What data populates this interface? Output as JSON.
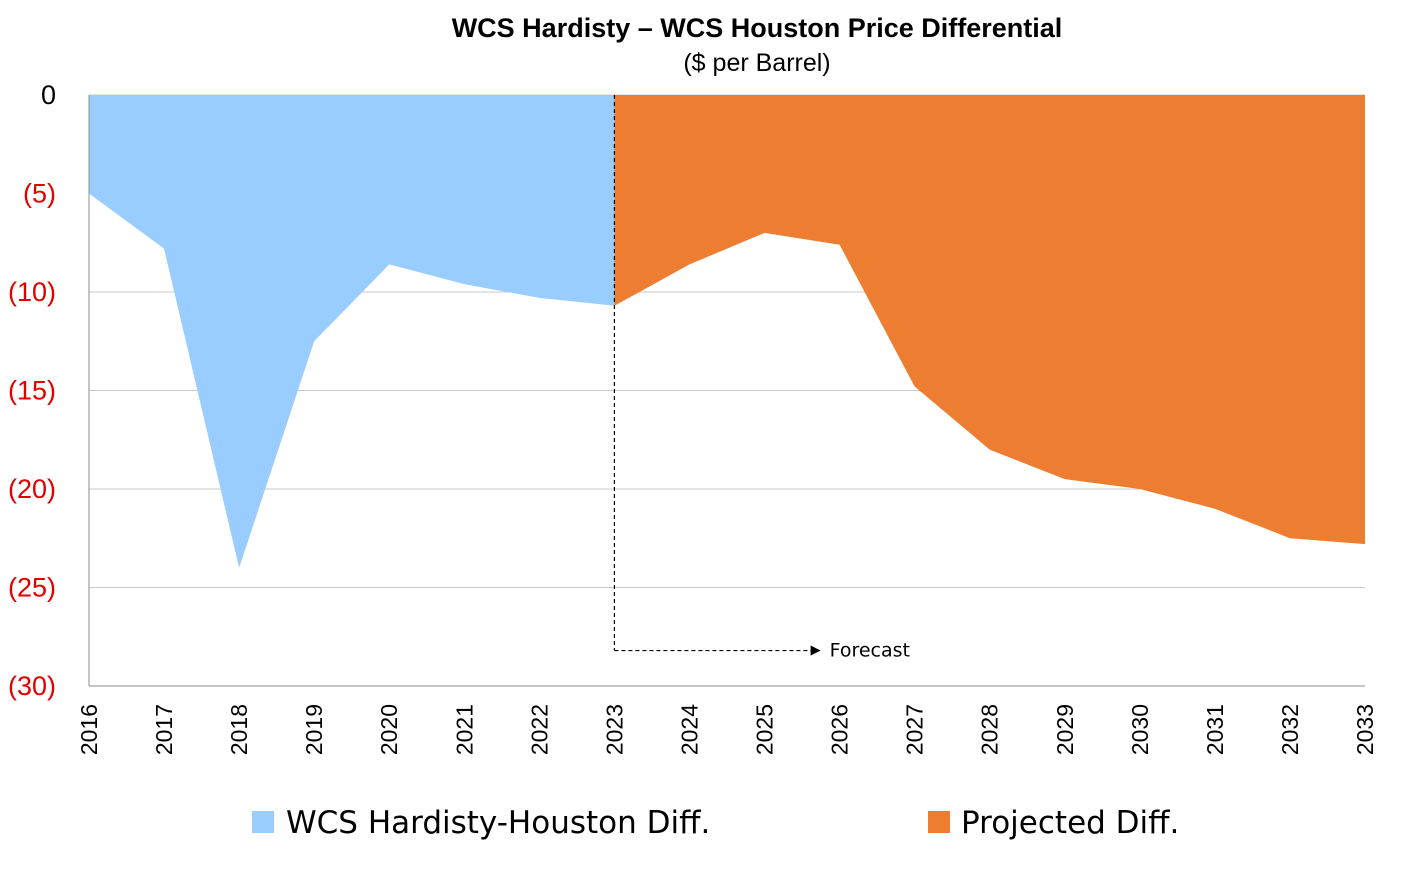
{
  "chart_data": {
    "type": "area",
    "title": "WCS Hardisty – WCS Houston Price Differential",
    "subtitle": "($ per Barrel)",
    "xlabel": "",
    "ylabel": "",
    "x": [
      "2016",
      "2017",
      "2018",
      "2019",
      "2020",
      "2021",
      "2022",
      "2023",
      "2024",
      "2025",
      "2026",
      "2027",
      "2028",
      "2029",
      "2030",
      "2031",
      "2032",
      "2033"
    ],
    "ylim": [
      -30,
      0
    ],
    "y_ticks": [
      0,
      -5,
      -10,
      -15,
      -20,
      -25,
      -30
    ],
    "y_tick_labels": [
      "0",
      "(5)",
      "(10)",
      "(15)",
      "(20)",
      "(25)",
      "(30)"
    ],
    "y_tick_colors": [
      "#000000",
      "#e00000",
      "#e00000",
      "#e00000",
      "#e00000",
      "#e00000",
      "#e00000"
    ],
    "grid": true,
    "legend": "bottom",
    "series": [
      {
        "name": "WCS Hardisty-Houston Diff.",
        "color": "#99ccff",
        "x": [
          "2016",
          "2017",
          "2018",
          "2019",
          "2020",
          "2021",
          "2022",
          "2023"
        ],
        "values": [
          -5.0,
          -7.8,
          -24.0,
          -12.5,
          -8.6,
          -9.6,
          -10.3,
          -10.7
        ]
      },
      {
        "name": "Projected Diff.",
        "color": "#ed7d31",
        "x": [
          "2023",
          "2024",
          "2025",
          "2026",
          "2027",
          "2028",
          "2029",
          "2030",
          "2031",
          "2032",
          "2033"
        ],
        "values": [
          -10.7,
          -8.6,
          -7.0,
          -7.6,
          -14.8,
          -18.0,
          -19.5,
          -20.0,
          -21.0,
          -22.5,
          -22.8
        ]
      }
    ],
    "annotations": [
      {
        "text": "Forecast",
        "marker_x": "2023",
        "arrow_to_x": "2026",
        "y": -28.2
      }
    ]
  }
}
